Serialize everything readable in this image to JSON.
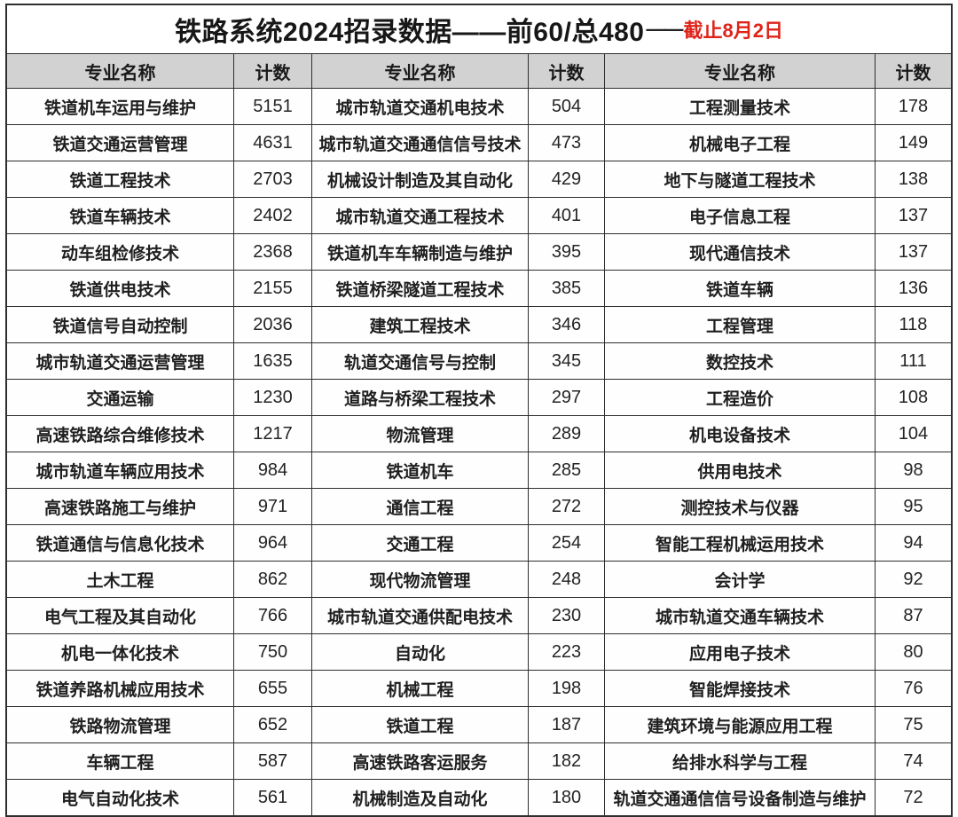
{
  "title": {
    "main": "铁路系统2024招录数据——前60/总480",
    "dash": "——",
    "deadline": "截止8月2日"
  },
  "colors": {
    "deadline_red": "#de241a",
    "header_gray": "#d2d2d2",
    "border_dark": "#2e2e2e"
  },
  "table": {
    "header": [
      "专业名称",
      "计数",
      "专业名称",
      "计数",
      "专业名称",
      "计数"
    ],
    "rows": [
      [
        "铁道机车运用与维护",
        "5151",
        "城市轨道交通机电技术",
        "504",
        "工程测量技术",
        "178"
      ],
      [
        "铁道交通运营管理",
        "4631",
        "城市轨道交通通信信号技术",
        "473",
        "机械电子工程",
        "149"
      ],
      [
        "铁道工程技术",
        "2703",
        "机械设计制造及其自动化",
        "429",
        "地下与隧道工程技术",
        "138"
      ],
      [
        "铁道车辆技术",
        "2402",
        "城市轨道交通工程技术",
        "401",
        "电子信息工程",
        "137"
      ],
      [
        "动车组检修技术",
        "2368",
        "铁道机车车辆制造与维护",
        "395",
        "现代通信技术",
        "137"
      ],
      [
        "铁道供电技术",
        "2155",
        "铁道桥梁隧道工程技术",
        "385",
        "铁道车辆",
        "136"
      ],
      [
        "铁道信号自动控制",
        "2036",
        "建筑工程技术",
        "346",
        "工程管理",
        "118"
      ],
      [
        "城市轨道交通运营管理",
        "1635",
        "轨道交通信号与控制",
        "345",
        "数控技术",
        "111"
      ],
      [
        "交通运输",
        "1230",
        "道路与桥梁工程技术",
        "297",
        "工程造价",
        "108"
      ],
      [
        "高速铁路综合维修技术",
        "1217",
        "物流管理",
        "289",
        "机电设备技术",
        "104"
      ],
      [
        "城市轨道车辆应用技术",
        "984",
        "铁道机车",
        "285",
        "供用电技术",
        "98"
      ],
      [
        "高速铁路施工与维护",
        "971",
        "通信工程",
        "272",
        "测控技术与仪器",
        "95"
      ],
      [
        "铁道通信与信息化技术",
        "964",
        "交通工程",
        "254",
        "智能工程机械运用技术",
        "94"
      ],
      [
        "土木工程",
        "862",
        "现代物流管理",
        "248",
        "会计学",
        "92"
      ],
      [
        "电气工程及其自动化",
        "766",
        "城市轨道交通供配电技术",
        "230",
        "城市轨道交通车辆技术",
        "87"
      ],
      [
        "机电一体化技术",
        "750",
        "自动化",
        "223",
        "应用电子技术",
        "80"
      ],
      [
        "铁道养路机械应用技术",
        "655",
        "机械工程",
        "198",
        "智能焊接技术",
        "76"
      ],
      [
        "铁路物流管理",
        "652",
        "铁道工程",
        "187",
        "建筑环境与能源应用工程",
        "75"
      ],
      [
        "车辆工程",
        "587",
        "高速铁路客运服务",
        "182",
        "给排水科学与工程",
        "74"
      ],
      [
        "电气自动化技术",
        "561",
        "机械制造及自动化",
        "180",
        "轨道交通通信信号设备制造与维护",
        "72"
      ]
    ]
  }
}
